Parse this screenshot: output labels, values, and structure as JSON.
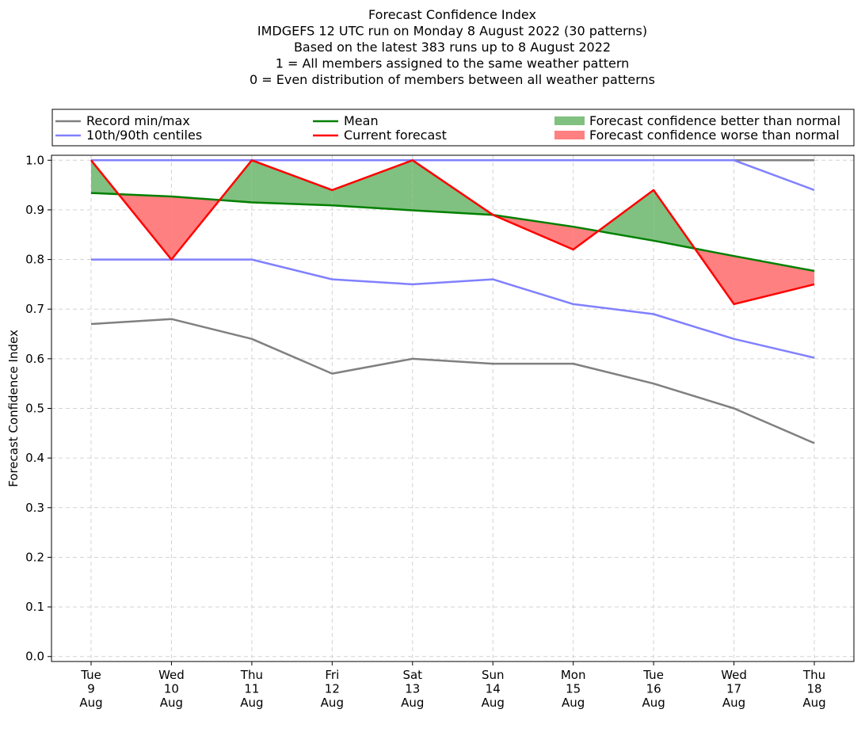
{
  "chart_data": {
    "type": "line",
    "title_lines": [
      "Forecast Confidence Index",
      "IMDGEFS 12 UTC run on Monday 8 August 2022 (30 patterns)",
      "Based on the latest 383 runs up to 8 August 2022",
      "1 = All members assigned to the same weather pattern",
      "0 = Even distribution of members between all weather patterns"
    ],
    "ylabel": "Forecast Confidence Index",
    "xlabel": "",
    "ylim": [
      -0.01,
      1.01
    ],
    "yticks": [
      0.0,
      0.1,
      0.2,
      0.3,
      0.4,
      0.5,
      0.6,
      0.7,
      0.8,
      0.9,
      1.0
    ],
    "ytick_labels": [
      "0.0",
      "0.1",
      "0.2",
      "0.3",
      "0.4",
      "0.5",
      "0.6",
      "0.7",
      "0.8",
      "0.9",
      "1.0"
    ],
    "grid": true,
    "categories": [
      [
        "Tue",
        "9",
        "Aug"
      ],
      [
        "Wed",
        "10",
        "Aug"
      ],
      [
        "Thu",
        "11",
        "Aug"
      ],
      [
        "Fri",
        "12",
        "Aug"
      ],
      [
        "Sat",
        "13",
        "Aug"
      ],
      [
        "Sun",
        "14",
        "Aug"
      ],
      [
        "Mon",
        "15",
        "Aug"
      ],
      [
        "Tue",
        "16",
        "Aug"
      ],
      [
        "Wed",
        "17",
        "Aug"
      ],
      [
        "Thu",
        "18",
        "Aug"
      ]
    ],
    "series": [
      {
        "key": "record_max",
        "name": "Record min/max",
        "color": "#808080",
        "values": [
          1.0,
          1.0,
          1.0,
          1.0,
          1.0,
          1.0,
          1.0,
          1.0,
          1.0,
          1.0
        ]
      },
      {
        "key": "record_min",
        "name": "Record min/max",
        "color": "#808080",
        "values": [
          0.67,
          0.68,
          0.64,
          0.57,
          0.6,
          0.59,
          0.59,
          0.55,
          0.5,
          0.43
        ]
      },
      {
        "key": "p90",
        "name": "10th/90th centiles",
        "color": "#8080ff",
        "values": [
          1.0,
          1.0,
          1.0,
          1.0,
          1.0,
          1.0,
          1.0,
          1.0,
          1.0,
          0.94
        ]
      },
      {
        "key": "p10",
        "name": "10th/90th centiles",
        "color": "#8080ff",
        "values": [
          0.8,
          0.8,
          0.8,
          0.76,
          0.75,
          0.76,
          0.71,
          0.69,
          0.64,
          0.602
        ]
      },
      {
        "key": "mean",
        "name": "Mean",
        "color": "#008000",
        "values": [
          0.934,
          0.927,
          0.915,
          0.909,
          0.899,
          0.89,
          0.866,
          0.838,
          0.807,
          0.777
        ]
      },
      {
        "key": "current",
        "name": "Current forecast",
        "color": "#ff0000",
        "values": [
          1.0,
          0.8,
          1.0,
          0.94,
          1.0,
          0.89,
          0.82,
          0.94,
          0.71,
          0.75
        ]
      }
    ],
    "legend": {
      "placement": "top, above plot",
      "entries": [
        {
          "label": "Record min/max",
          "kind": "line",
          "color": "#808080"
        },
        {
          "label": "10th/90th centiles",
          "kind": "line",
          "color": "#8080ff"
        },
        {
          "label": "Mean",
          "kind": "line",
          "color": "#008000"
        },
        {
          "label": "Current forecast",
          "kind": "line",
          "color": "#ff0000"
        },
        {
          "label": "Forecast confidence better than normal",
          "kind": "patch",
          "color": "#80c080"
        },
        {
          "label": "Forecast confidence worse than normal",
          "kind": "patch",
          "color": "#ff8080"
        }
      ]
    },
    "fill_colors": {
      "better": "#80c080",
      "worse": "#ff8080"
    }
  }
}
